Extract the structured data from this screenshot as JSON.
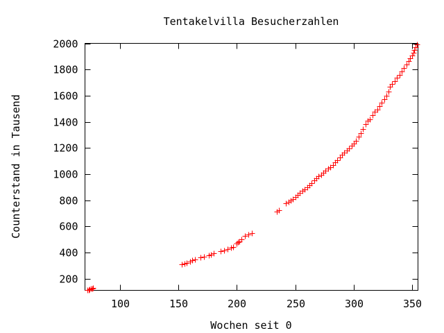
{
  "chart_data": {
    "type": "scatter",
    "title": "Tentakelvilla Besucherzahlen",
    "xlabel": "Wochen seit 0",
    "ylabel": "Counterstand in Tausend",
    "xlim": [
      70,
      355
    ],
    "ylim": [
      110,
      2000
    ],
    "xticks": [
      100,
      150,
      200,
      250,
      300,
      350
    ],
    "yticks": [
      200,
      400,
      600,
      800,
      1000,
      1200,
      1400,
      1600,
      1800,
      2000
    ],
    "grid": false,
    "marker": "plus",
    "color": "#ff0000",
    "series": [
      {
        "points": [
          [
            72,
            112
          ],
          [
            73,
            115
          ],
          [
            74,
            118
          ],
          [
            75,
            121
          ],
          [
            76,
            124
          ],
          [
            77,
            127
          ],
          [
            153,
            308
          ],
          [
            155,
            312
          ],
          [
            157,
            318
          ],
          [
            160,
            330
          ],
          [
            162,
            340
          ],
          [
            164,
            345
          ],
          [
            169,
            362
          ],
          [
            172,
            370
          ],
          [
            176,
            380
          ],
          [
            178,
            386
          ],
          [
            180,
            392
          ],
          [
            186,
            408
          ],
          [
            189,
            416
          ],
          [
            192,
            425
          ],
          [
            195,
            435
          ],
          [
            197,
            442
          ],
          [
            200,
            470
          ],
          [
            201,
            478
          ],
          [
            202,
            485
          ],
          [
            204,
            500
          ],
          [
            207,
            525
          ],
          [
            210,
            540
          ],
          [
            213,
            550
          ],
          [
            234,
            712
          ],
          [
            236,
            722
          ],
          [
            242,
            775
          ],
          [
            244,
            785
          ],
          [
            246,
            798
          ],
          [
            248,
            810
          ],
          [
            250,
            825
          ],
          [
            252,
            840
          ],
          [
            254,
            855
          ],
          [
            256,
            870
          ],
          [
            258,
            885
          ],
          [
            260,
            900
          ],
          [
            262,
            915
          ],
          [
            264,
            932
          ],
          [
            266,
            950
          ],
          [
            268,
            965
          ],
          [
            270,
            982
          ],
          [
            272,
            996
          ],
          [
            274,
            1010
          ],
          [
            276,
            1025
          ],
          [
            278,
            1040
          ],
          [
            280,
            1055
          ],
          [
            282,
            1070
          ],
          [
            284,
            1090
          ],
          [
            286,
            1108
          ],
          [
            288,
            1128
          ],
          [
            290,
            1148
          ],
          [
            292,
            1165
          ],
          [
            294,
            1182
          ],
          [
            296,
            1198
          ],
          [
            298,
            1215
          ],
          [
            300,
            1232
          ],
          [
            302,
            1255
          ],
          [
            304,
            1285
          ],
          [
            306,
            1310
          ],
          [
            308,
            1345
          ],
          [
            310,
            1380
          ],
          [
            312,
            1408
          ],
          [
            314,
            1420
          ],
          [
            316,
            1452
          ],
          [
            318,
            1475
          ],
          [
            320,
            1495
          ],
          [
            322,
            1520
          ],
          [
            324,
            1548
          ],
          [
            326,
            1572
          ],
          [
            328,
            1600
          ],
          [
            330,
            1632
          ],
          [
            331,
            1668
          ],
          [
            333,
            1690
          ],
          [
            335,
            1712
          ],
          [
            337,
            1738
          ],
          [
            339,
            1760
          ],
          [
            341,
            1785
          ],
          [
            343,
            1810
          ],
          [
            345,
            1838
          ],
          [
            347,
            1865
          ],
          [
            348,
            1885
          ],
          [
            350,
            1905
          ],
          [
            351,
            1928
          ],
          [
            352,
            1950
          ],
          [
            353,
            1972
          ],
          [
            354,
            1990
          ]
        ]
      }
    ]
  }
}
